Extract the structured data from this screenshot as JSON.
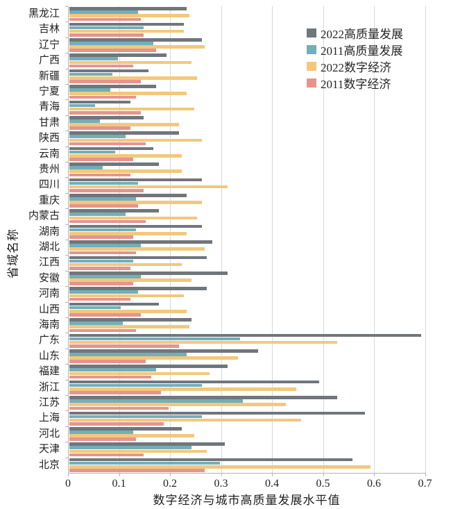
{
  "chart_data": {
    "type": "bar",
    "orientation": "horizontal",
    "xlabel": "数字经济与城市高质量发展水平值",
    "ylabel": "省域名称",
    "xlim": [
      0,
      0.7
    ],
    "xticks": [
      0,
      0.1,
      0.2,
      0.3,
      0.4,
      0.5,
      0.6,
      0.7
    ],
    "grid": true,
    "legend_position": "top-right",
    "categories": [
      "黑龙江",
      "吉林",
      "辽宁",
      "广西",
      "新疆",
      "宁夏",
      "青海",
      "甘肃",
      "陕西",
      "云南",
      "贵州",
      "四川",
      "重庆",
      "内蒙古",
      "湖南",
      "湖北",
      "江西",
      "安徽",
      "河南",
      "山西",
      "海南",
      "广东",
      "山东",
      "福建",
      "浙江",
      "江苏",
      "上海",
      "河北",
      "天津",
      "北京"
    ],
    "series": [
      {
        "name": "2022高质量发展",
        "color": "#6f767c",
        "values": [
          0.23,
          0.225,
          0.26,
          0.19,
          0.155,
          0.17,
          0.12,
          0.145,
          0.215,
          0.165,
          0.175,
          0.26,
          0.23,
          0.175,
          0.26,
          0.28,
          0.27,
          0.31,
          0.27,
          0.175,
          0.24,
          0.69,
          0.37,
          0.31,
          0.49,
          0.525,
          0.58,
          0.22,
          0.305,
          0.555
        ]
      },
      {
        "name": "2011高质量发展",
        "color": "#74aeb9",
        "values": [
          0.135,
          0.145,
          0.165,
          0.095,
          0.085,
          0.08,
          0.05,
          0.06,
          0.11,
          0.09,
          0.065,
          0.135,
          0.13,
          0.11,
          0.13,
          0.14,
          0.125,
          0.14,
          0.135,
          0.1,
          0.105,
          0.335,
          0.23,
          0.17,
          0.26,
          0.34,
          0.26,
          0.125,
          0.24,
          0.295
        ]
      },
      {
        "name": "2022数字经济",
        "color": "#f2c87c",
        "values": [
          0.235,
          0.225,
          0.265,
          0.24,
          0.25,
          0.23,
          0.245,
          0.215,
          0.26,
          0.22,
          0.22,
          0.31,
          0.26,
          0.25,
          0.23,
          0.265,
          0.22,
          0.24,
          0.225,
          0.23,
          0.235,
          0.525,
          0.33,
          0.275,
          0.445,
          0.425,
          0.455,
          0.245,
          0.27,
          0.59
        ]
      },
      {
        "name": "2011数字经济",
        "color": "#e6948e",
        "values": [
          0.14,
          0.145,
          0.17,
          0.125,
          0.14,
          0.13,
          0.14,
          0.12,
          0.15,
          0.125,
          0.12,
          0.145,
          0.135,
          0.15,
          0.125,
          0.13,
          0.12,
          0.125,
          0.12,
          0.14,
          0.13,
          0.215,
          0.15,
          0.16,
          0.18,
          0.195,
          0.185,
          0.13,
          0.145,
          0.265
        ]
      }
    ]
  },
  "style": {
    "gridline_color": "#d8d8d8",
    "axis_color": "#b3b3b3",
    "text_color": "#1f1f1f"
  }
}
